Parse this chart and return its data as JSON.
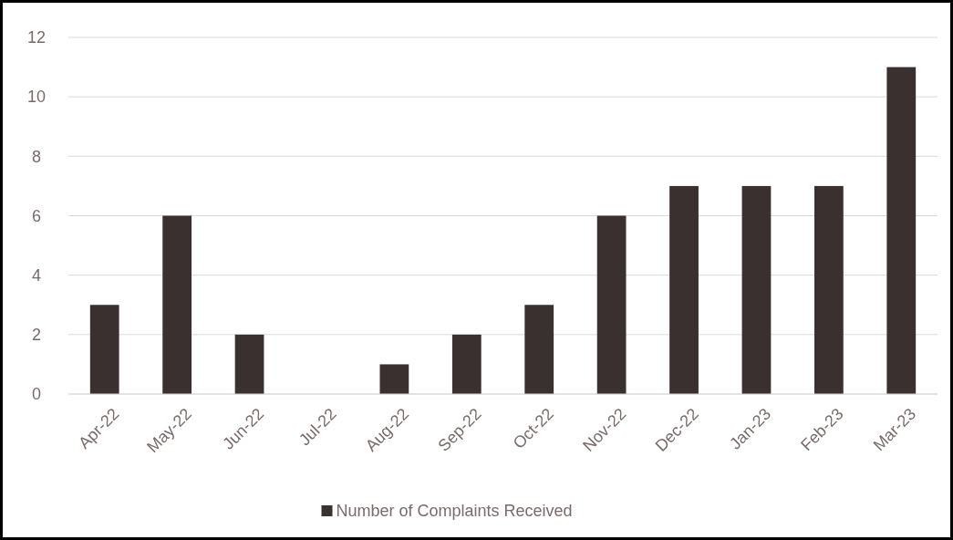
{
  "chart_data": {
    "type": "bar",
    "categories": [
      "Apr-22",
      "May-22",
      "Jun-22",
      "Jul-22",
      "Aug-22",
      "Sep-22",
      "Oct-22",
      "Nov-22",
      "Dec-22",
      "Jan-23",
      "Feb-23",
      "Mar-23"
    ],
    "series": [
      {
        "name": "Number of Complaints Received",
        "color": "#3b3030",
        "values": [
          3,
          6,
          2,
          0,
          1,
          2,
          3,
          6,
          7,
          7,
          7,
          11
        ]
      }
    ],
    "ylim": [
      0,
      12
    ],
    "yticks": [
      0,
      2,
      4,
      6,
      8,
      10,
      12
    ],
    "grid": "y",
    "legend": "bottom"
  }
}
